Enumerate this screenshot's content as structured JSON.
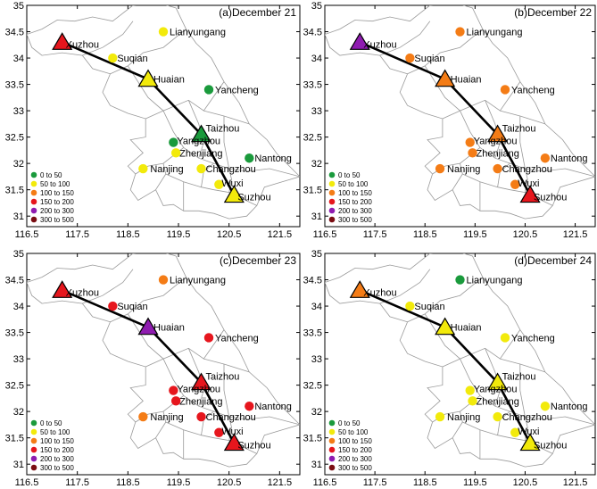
{
  "chart_data": [
    {
      "type": "map",
      "title": "(a)December 21",
      "xlim": [
        116.5,
        121.9
      ],
      "ylim": [
        30.8,
        35.0
      ],
      "xticks": [
        "116.5",
        "117.5",
        "118.5",
        "119.5",
        "120.5",
        "121.5"
      ],
      "yticks": [
        "31",
        "31.5",
        "32",
        "32.5",
        "33",
        "33.5",
        "34",
        "34.5",
        "35"
      ],
      "cities": [
        {
          "name": "Xuzhou",
          "lon": 117.2,
          "lat": 34.3,
          "category": "150 to 200",
          "triangle": true
        },
        {
          "name": "Lianyungang",
          "lon": 119.2,
          "lat": 34.5,
          "category": "50 to 100"
        },
        {
          "name": "Suqian",
          "lon": 118.2,
          "lat": 34.0,
          "category": "50 to 100"
        },
        {
          "name": "Huaian",
          "lon": 118.9,
          "lat": 33.6,
          "category": "50 to 100",
          "triangle": true
        },
        {
          "name": "Yancheng",
          "lon": 120.1,
          "lat": 33.4,
          "category": "0 to 50"
        },
        {
          "name": "Taizhou",
          "lon": 119.95,
          "lat": 32.55,
          "category": "0 to 50",
          "triangle": true
        },
        {
          "name": "Yangzhou",
          "lon": 119.4,
          "lat": 32.4,
          "category": "0 to 50"
        },
        {
          "name": "Zhenjiang",
          "lon": 119.45,
          "lat": 32.2,
          "category": "50 to 100"
        },
        {
          "name": "Nantong",
          "lon": 120.9,
          "lat": 32.1,
          "category": "0 to 50"
        },
        {
          "name": "Nanjing",
          "lon": 118.8,
          "lat": 31.9,
          "category": "50 to 100"
        },
        {
          "name": "Changzhou",
          "lon": 119.95,
          "lat": 31.9,
          "category": "50 to 100"
        },
        {
          "name": "Wuxi",
          "lon": 120.3,
          "lat": 31.6,
          "category": "50 to 100"
        },
        {
          "name": "Suzhou",
          "lon": 120.6,
          "lat": 31.4,
          "category": "50 to 100",
          "triangle": true
        }
      ]
    },
    {
      "type": "map",
      "title": "(b)December 22",
      "xlim": [
        116.5,
        121.9
      ],
      "ylim": [
        30.8,
        35.0
      ],
      "xticks": [
        "116.5",
        "117.5",
        "118.5",
        "119.5",
        "120.5",
        "121.5"
      ],
      "yticks": [
        "31",
        "31.5",
        "32",
        "32.5",
        "33",
        "33.5",
        "34",
        "34.5",
        "35"
      ],
      "cities": [
        {
          "name": "Xuzhou",
          "lon": 117.2,
          "lat": 34.3,
          "category": "200 to 300",
          "triangle": true
        },
        {
          "name": "Lianyungang",
          "lon": 119.2,
          "lat": 34.5,
          "category": "100 to 150"
        },
        {
          "name": "Suqian",
          "lon": 118.2,
          "lat": 34.0,
          "category": "100 to 150"
        },
        {
          "name": "Huaian",
          "lon": 118.9,
          "lat": 33.6,
          "category": "100 to 150",
          "triangle": true
        },
        {
          "name": "Yancheng",
          "lon": 120.1,
          "lat": 33.4,
          "category": "100 to 150"
        },
        {
          "name": "Taizhou",
          "lon": 119.95,
          "lat": 32.55,
          "category": "100 to 150",
          "triangle": true
        },
        {
          "name": "Yangzhou",
          "lon": 119.4,
          "lat": 32.4,
          "category": "100 to 150"
        },
        {
          "name": "Zhenjiang",
          "lon": 119.45,
          "lat": 32.2,
          "category": "100 to 150"
        },
        {
          "name": "Nantong",
          "lon": 120.9,
          "lat": 32.1,
          "category": "100 to 150"
        },
        {
          "name": "Nanjing",
          "lon": 118.8,
          "lat": 31.9,
          "category": "100 to 150"
        },
        {
          "name": "Changzhou",
          "lon": 119.95,
          "lat": 31.9,
          "category": "100 to 150"
        },
        {
          "name": "Wuxi",
          "lon": 120.3,
          "lat": 31.6,
          "category": "100 to 150"
        },
        {
          "name": "Suzhou",
          "lon": 120.6,
          "lat": 31.4,
          "category": "150 to 200",
          "triangle": true
        }
      ]
    },
    {
      "type": "map",
      "title": "(c)December 23",
      "xlim": [
        116.5,
        121.9
      ],
      "ylim": [
        30.8,
        35.0
      ],
      "xticks": [
        "116.5",
        "117.5",
        "118.5",
        "119.5",
        "120.5",
        "121.5"
      ],
      "yticks": [
        "31",
        "31.5",
        "32",
        "32.5",
        "33",
        "33.5",
        "34",
        "34.5",
        "35"
      ],
      "cities": [
        {
          "name": "Xuzhou",
          "lon": 117.2,
          "lat": 34.3,
          "category": "150 to 200",
          "triangle": true
        },
        {
          "name": "Lianyungang",
          "lon": 119.2,
          "lat": 34.5,
          "category": "100 to 150"
        },
        {
          "name": "Suqian",
          "lon": 118.2,
          "lat": 34.0,
          "category": "150 to 200"
        },
        {
          "name": "Huaian",
          "lon": 118.9,
          "lat": 33.6,
          "category": "200 to 300",
          "triangle": true
        },
        {
          "name": "Yancheng",
          "lon": 120.1,
          "lat": 33.4,
          "category": "150 to 200"
        },
        {
          "name": "Taizhou",
          "lon": 119.95,
          "lat": 32.55,
          "category": "150 to 200",
          "triangle": true
        },
        {
          "name": "Yangzhou",
          "lon": 119.4,
          "lat": 32.4,
          "category": "150 to 200"
        },
        {
          "name": "Zhenjiang",
          "lon": 119.45,
          "lat": 32.2,
          "category": "150 to 200"
        },
        {
          "name": "Nantong",
          "lon": 120.9,
          "lat": 32.1,
          "category": "150 to 200"
        },
        {
          "name": "Nanjing",
          "lon": 118.8,
          "lat": 31.9,
          "category": "100 to 150"
        },
        {
          "name": "Changzhou",
          "lon": 119.95,
          "lat": 31.9,
          "category": "150 to 200"
        },
        {
          "name": "Wuxi",
          "lon": 120.3,
          "lat": 31.6,
          "category": "150 to 200"
        },
        {
          "name": "Suzhou",
          "lon": 120.6,
          "lat": 31.4,
          "category": "150 to 200",
          "triangle": true
        }
      ]
    },
    {
      "type": "map",
      "title": "(d)December 24",
      "xlim": [
        116.5,
        121.9
      ],
      "ylim": [
        30.8,
        35.0
      ],
      "xticks": [
        "116.5",
        "117.5",
        "118.5",
        "119.5",
        "120.5",
        "121.5"
      ],
      "yticks": [
        "31",
        "31.5",
        "32",
        "32.5",
        "33",
        "33.5",
        "34",
        "34.5",
        "35"
      ],
      "cities": [
        {
          "name": "Xuzhou",
          "lon": 117.2,
          "lat": 34.3,
          "category": "100 to 150",
          "triangle": true
        },
        {
          "name": "Lianyungang",
          "lon": 119.2,
          "lat": 34.5,
          "category": "0 to 50"
        },
        {
          "name": "Suqian",
          "lon": 118.2,
          "lat": 34.0,
          "category": "50 to 100"
        },
        {
          "name": "Huaian",
          "lon": 118.9,
          "lat": 33.6,
          "category": "50 to 100",
          "triangle": true
        },
        {
          "name": "Yancheng",
          "lon": 120.1,
          "lat": 33.4,
          "category": "50 to 100"
        },
        {
          "name": "Taizhou",
          "lon": 119.95,
          "lat": 32.55,
          "category": "50 to 100",
          "triangle": true
        },
        {
          "name": "Yangzhou",
          "lon": 119.4,
          "lat": 32.4,
          "category": "50 to 100"
        },
        {
          "name": "Zhenjiang",
          "lon": 119.45,
          "lat": 32.2,
          "category": "50 to 100"
        },
        {
          "name": "Nantong",
          "lon": 120.9,
          "lat": 32.1,
          "category": "50 to 100"
        },
        {
          "name": "Nanjing",
          "lon": 118.8,
          "lat": 31.9,
          "category": "50 to 100"
        },
        {
          "name": "Changzhou",
          "lon": 119.95,
          "lat": 31.9,
          "category": "50 to 100"
        },
        {
          "name": "Wuxi",
          "lon": 120.3,
          "lat": 31.6,
          "category": "50 to 100"
        },
        {
          "name": "Suzhou",
          "lon": 120.6,
          "lat": 31.4,
          "category": "50 to 100",
          "triangle": true
        }
      ]
    }
  ],
  "legend": {
    "entries": [
      {
        "label": "0  to  50",
        "category": "0 to 50",
        "color": "#1a9a3c"
      },
      {
        "label": "50  to  100",
        "category": "50 to 100",
        "color": "#f2ea0b"
      },
      {
        "label": "100  to  150",
        "category": "100 to 150",
        "color": "#f47c16"
      },
      {
        "label": "150  to  200",
        "category": "150 to 200",
        "color": "#e6161d"
      },
      {
        "label": "200  to  300",
        "category": "200 to 300",
        "color": "#8f1cb0"
      },
      {
        "label": "300  to  500",
        "category": "300 to 500",
        "color": "#7a0d12"
      }
    ]
  },
  "route": [
    "Xuzhou",
    "Huaian",
    "Taizhou",
    "Suzhou"
  ]
}
